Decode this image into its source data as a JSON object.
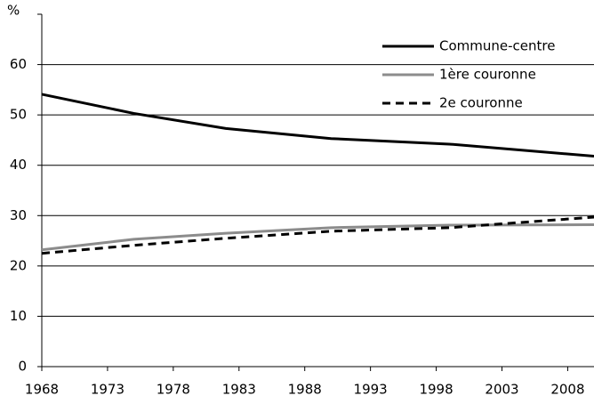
{
  "chart_data": {
    "type": "line",
    "y_label": "%",
    "x": [
      1968,
      1975,
      1982,
      1990,
      1999,
      2010
    ],
    "xlim": [
      1968,
      2010
    ],
    "xticks": [
      1968,
      1973,
      1978,
      1983,
      1988,
      1993,
      1998,
      2003,
      2008
    ],
    "ylim": [
      0,
      70
    ],
    "yticks": [
      0,
      10,
      20,
      30,
      40,
      50,
      60
    ],
    "grid": true,
    "legend": "top-right",
    "series": [
      {
        "name": "Commune-centre",
        "color": "#000000",
        "style": "solid",
        "values": [
          54.1,
          50.3,
          47.3,
          45.3,
          44.2,
          41.8
        ]
      },
      {
        "name": "1ère couronne",
        "color": "#8c8c8c",
        "style": "solid",
        "values": [
          23.2,
          25.3,
          26.5,
          27.6,
          28.1,
          28.2
        ]
      },
      {
        "name": "2e couronne",
        "color": "#000000",
        "style": "dashed",
        "values": [
          22.5,
          24.1,
          25.5,
          26.9,
          27.6,
          29.7
        ]
      }
    ]
  }
}
